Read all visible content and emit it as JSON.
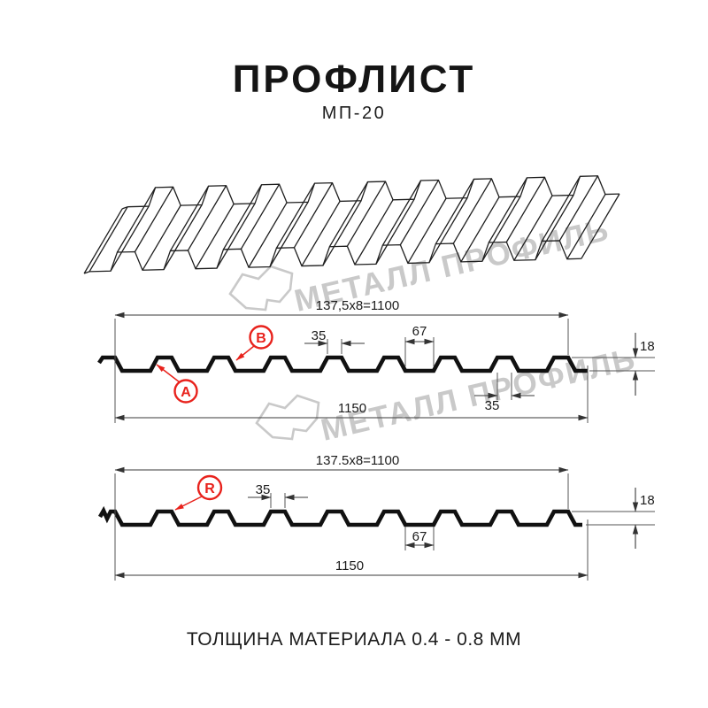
{
  "page": {
    "title": "ПРОФЛИСТ",
    "subtitle": "МП-20",
    "footer": "ТОЛЩИНА МАТЕРИАЛА 0.4 - 0.8 ММ"
  },
  "watermark": {
    "text": "МЕТАЛЛ ПРОФИЛЬ",
    "color": "#c9c9c9"
  },
  "colors": {
    "accent_red": "#e8221c",
    "line": "#1c1c1c"
  },
  "profile_front": {
    "pitch_label": "137,5x8=1100",
    "rib_top_width": "35",
    "valley_width": "67",
    "sheet_height": "18",
    "rib_bottom_width": "35",
    "total_width": "1150",
    "callout_a": "A",
    "callout_b": "B"
  },
  "profile_reverse": {
    "pitch_label": "137.5x8=1100",
    "rib_top_width": "35",
    "valley_width": "67",
    "sheet_height": "18",
    "total_width": "1150",
    "callout_r": "R"
  }
}
